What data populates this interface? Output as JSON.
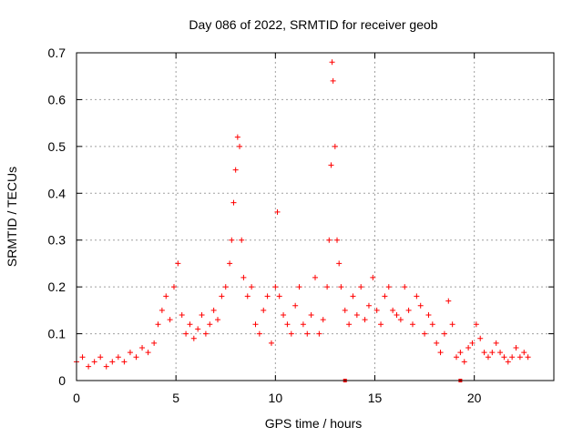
{
  "chart_data": {
    "type": "scatter",
    "title": "Day 086 of 2022, SRMTID for receiver geob",
    "xlabel": "GPS time / hours",
    "ylabel": "SRMTID / TECUs",
    "xlim": [
      0,
      24
    ],
    "ylim": [
      0,
      0.7
    ],
    "xticks": [
      0,
      5,
      10,
      15,
      20
    ],
    "xtick_labels": [
      "0",
      "5",
      "10",
      "15",
      "20"
    ],
    "yticks": [
      0,
      0.1,
      0.2,
      0.3,
      0.4,
      0.5,
      0.6,
      0.7
    ],
    "ytick_labels": [
      "0",
      "0.1",
      "0.2",
      "0.3",
      "0.4",
      "0.5",
      "0.6",
      "0.7"
    ],
    "grid": true,
    "marker": "plus",
    "color": "#ff0000",
    "series": [
      {
        "name": "SRMTID",
        "x": [
          0.0,
          0.3,
          0.6,
          0.9,
          1.2,
          1.5,
          1.8,
          2.1,
          2.4,
          2.7,
          3.0,
          3.3,
          3.6,
          3.9,
          4.1,
          4.3,
          4.5,
          4.7,
          4.9,
          5.1,
          5.3,
          5.5,
          5.7,
          5.9,
          6.1,
          6.3,
          6.5,
          6.7,
          6.9,
          7.1,
          7.3,
          7.5,
          7.7,
          7.8,
          7.9,
          8.0,
          8.1,
          8.2,
          8.3,
          8.4,
          8.6,
          8.8,
          9.0,
          9.2,
          9.4,
          9.6,
          9.8,
          10.0,
          10.1,
          10.2,
          10.4,
          10.6,
          10.8,
          11.0,
          11.2,
          11.4,
          11.6,
          11.8,
          12.0,
          12.2,
          12.4,
          12.6,
          12.7,
          12.8,
          12.85,
          12.9,
          13.0,
          13.1,
          13.2,
          13.3,
          13.5,
          13.7,
          13.9,
          14.1,
          14.3,
          14.5,
          14.7,
          14.9,
          15.1,
          15.3,
          15.5,
          15.7,
          15.9,
          16.1,
          16.3,
          16.5,
          16.7,
          16.9,
          17.1,
          17.3,
          17.5,
          17.7,
          17.9,
          18.1,
          18.3,
          18.5,
          18.7,
          18.9,
          19.1,
          19.3,
          19.5,
          19.7,
          19.9,
          20.1,
          20.3,
          20.5,
          20.7,
          20.9,
          21.1,
          21.3,
          21.5,
          21.7,
          21.9,
          22.1,
          22.3,
          22.5,
          22.7
        ],
        "y": [
          0.04,
          0.05,
          0.03,
          0.04,
          0.05,
          0.03,
          0.04,
          0.05,
          0.04,
          0.06,
          0.05,
          0.07,
          0.06,
          0.08,
          0.12,
          0.15,
          0.18,
          0.13,
          0.2,
          0.25,
          0.14,
          0.1,
          0.12,
          0.09,
          0.11,
          0.14,
          0.1,
          0.12,
          0.15,
          0.13,
          0.18,
          0.2,
          0.25,
          0.3,
          0.38,
          0.45,
          0.52,
          0.5,
          0.3,
          0.22,
          0.18,
          0.2,
          0.12,
          0.1,
          0.15,
          0.18,
          0.08,
          0.2,
          0.36,
          0.18,
          0.14,
          0.12,
          0.1,
          0.16,
          0.2,
          0.12,
          0.1,
          0.14,
          0.22,
          0.1,
          0.13,
          0.2,
          0.3,
          0.46,
          0.68,
          0.64,
          0.5,
          0.3,
          0.25,
          0.2,
          0.15,
          0.12,
          0.18,
          0.14,
          0.2,
          0.13,
          0.16,
          0.22,
          0.15,
          0.12,
          0.18,
          0.2,
          0.15,
          0.14,
          0.13,
          0.2,
          0.15,
          0.12,
          0.18,
          0.16,
          0.1,
          0.14,
          0.12,
          0.08,
          0.06,
          0.1,
          0.17,
          0.12,
          0.05,
          0.06,
          0.04,
          0.07,
          0.08,
          0.12,
          0.09,
          0.06,
          0.05,
          0.06,
          0.08,
          0.06,
          0.05,
          0.04,
          0.05,
          0.07,
          0.05,
          0.06,
          0.05
        ]
      }
    ],
    "bottom_markers_x": [
      13.5,
      19.3
    ]
  }
}
